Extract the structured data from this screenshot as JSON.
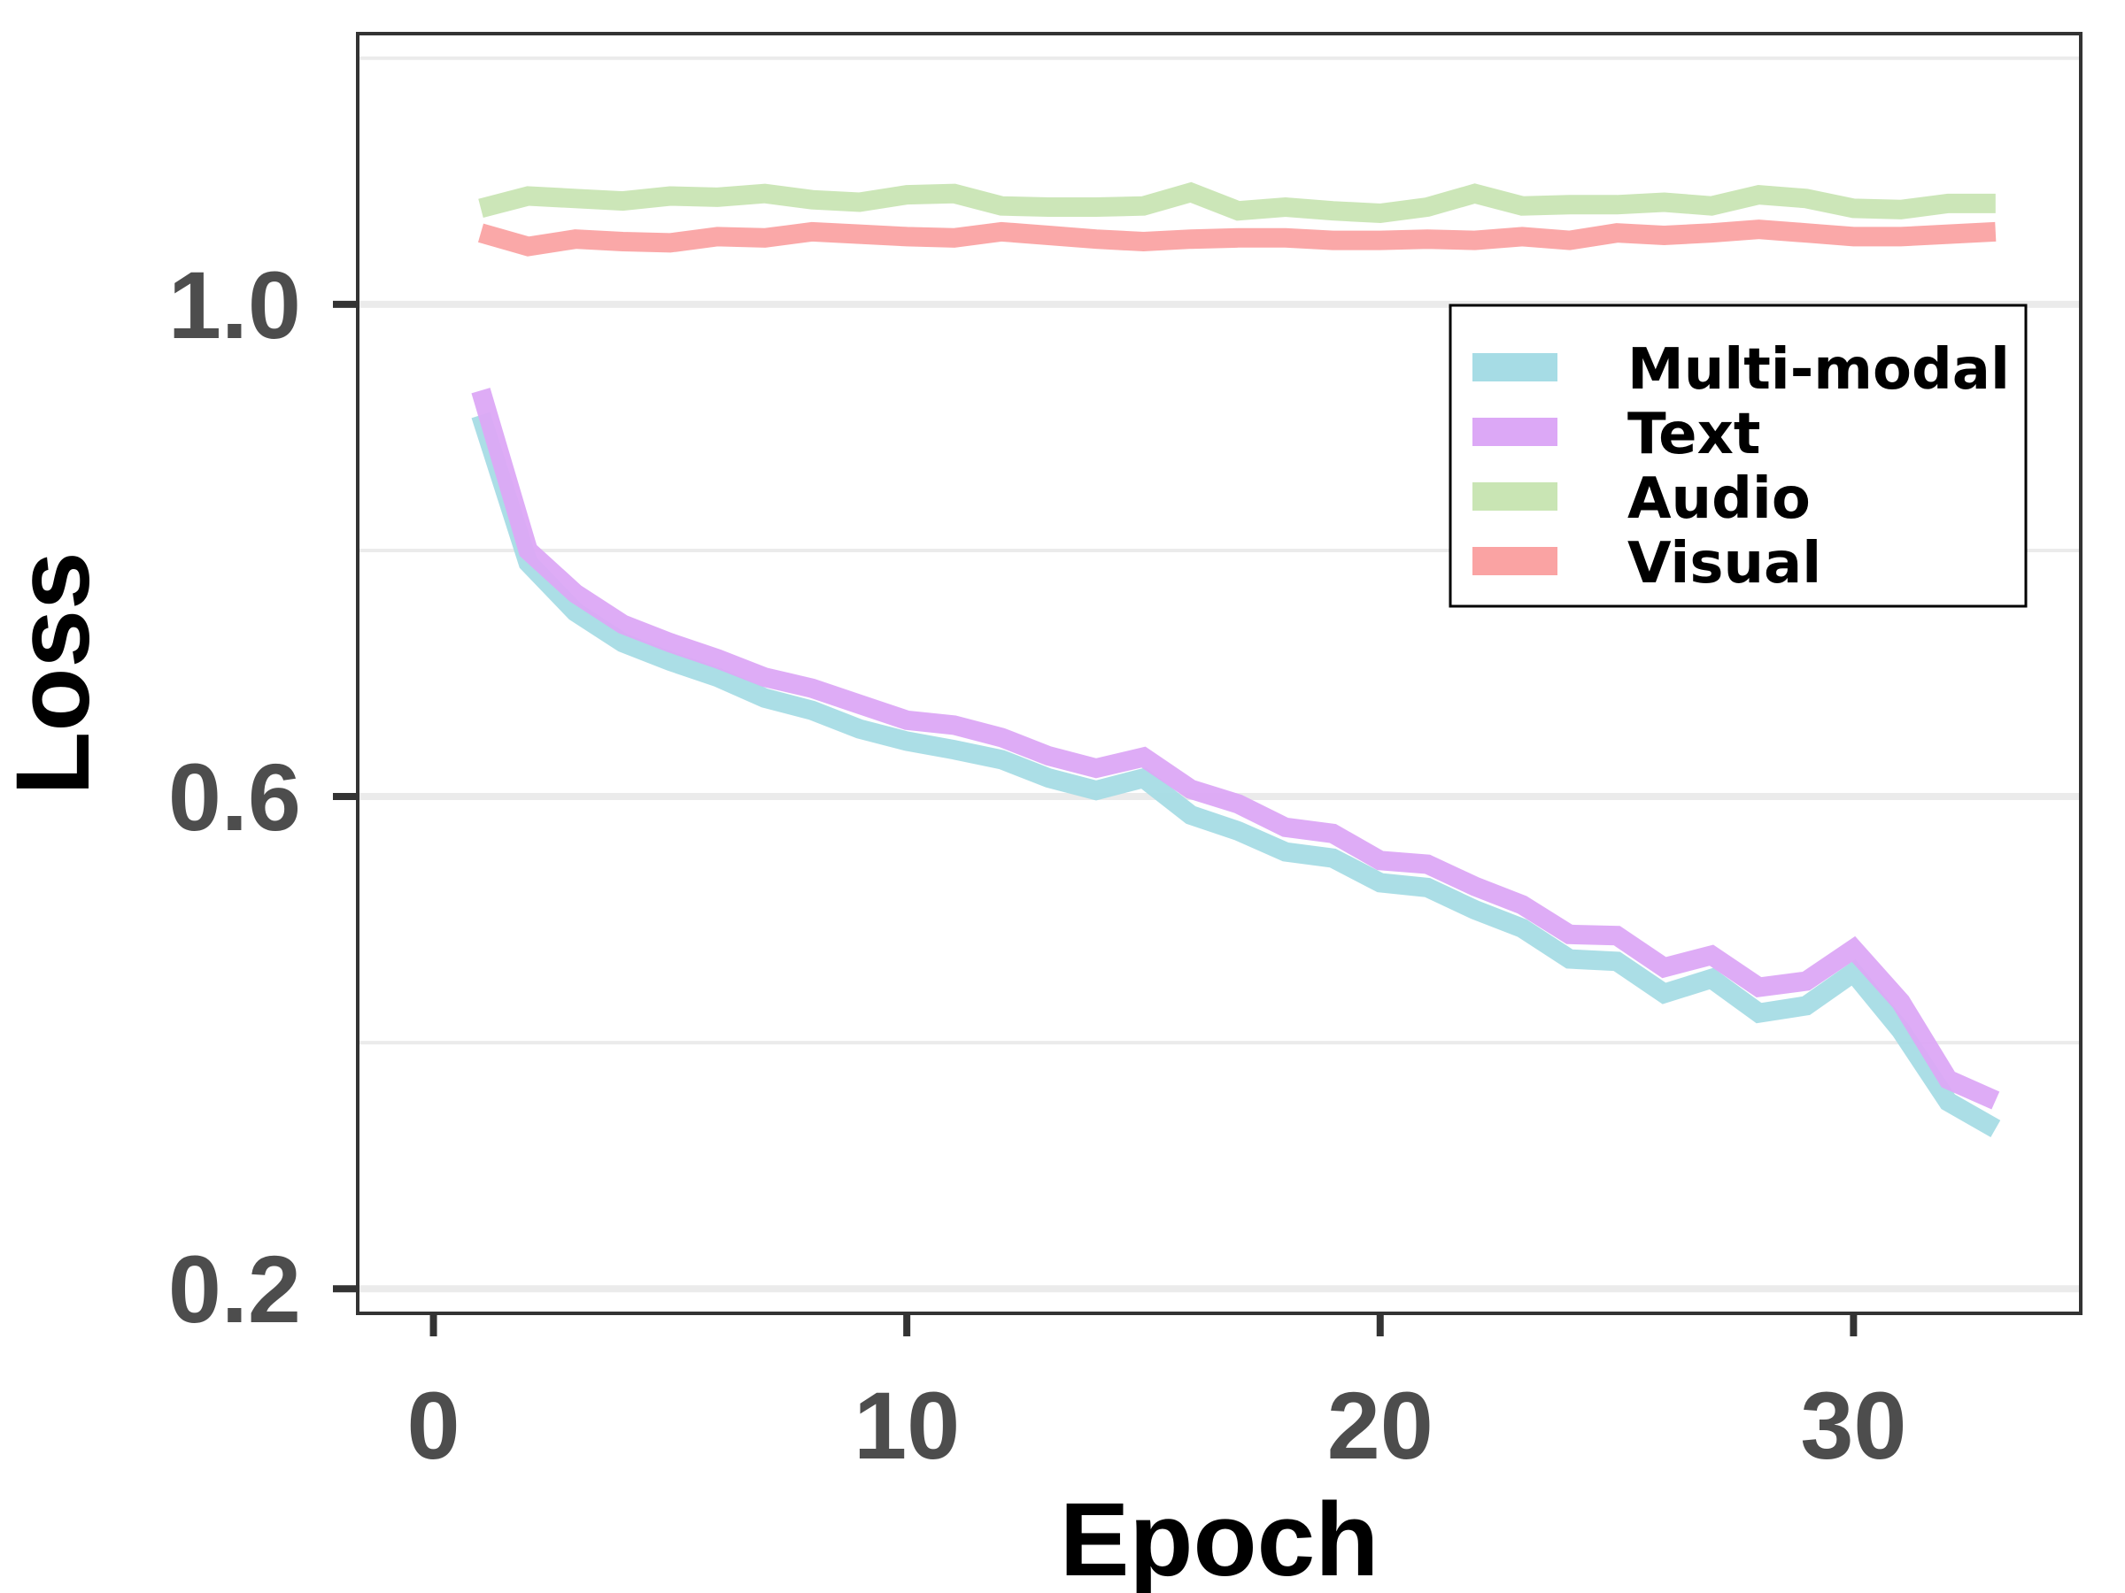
{
  "chart_data": {
    "type": "line",
    "title": "",
    "xlabel": "Epoch",
    "ylabel": "Loss",
    "xlim": [
      -1.6,
      34.8
    ],
    "ylim": [
      0.18,
      1.22
    ],
    "xticks": [
      0,
      10,
      20,
      30
    ],
    "xtick_labels": [
      "0",
      "10",
      "20",
      "30"
    ],
    "yticks": [
      0.2,
      0.6,
      1.0
    ],
    "ytick_labels": [
      "0.2",
      "0.6",
      "1.0"
    ],
    "minor_gridlines_y": [
      0.4,
      0.8,
      1.2
    ],
    "grid": "horizontal",
    "legend_position": "upper-right",
    "x": [
      1,
      2,
      3,
      4,
      5,
      6,
      7,
      8,
      9,
      10,
      11,
      12,
      13,
      14,
      15,
      16,
      17,
      18,
      19,
      20,
      21,
      22,
      23,
      24,
      25,
      26,
      27,
      28,
      29,
      30,
      31,
      32,
      33
    ],
    "series": [
      {
        "name": "Multi-modal",
        "color": "#a6dce5",
        "values": [
          0.91,
          0.79,
          0.75,
          0.725,
          0.71,
          0.697,
          0.68,
          0.67,
          0.655,
          0.645,
          0.638,
          0.63,
          0.615,
          0.605,
          0.615,
          0.585,
          0.572,
          0.555,
          0.55,
          0.53,
          0.526,
          0.508,
          0.493,
          0.468,
          0.466,
          0.44,
          0.452,
          0.424,
          0.43,
          0.457,
          0.41,
          0.352,
          0.33
        ]
      },
      {
        "name": "Text",
        "color": "#dca8f6",
        "values": [
          0.93,
          0.8,
          0.765,
          0.74,
          0.725,
          0.712,
          0.697,
          0.688,
          0.675,
          0.662,
          0.658,
          0.648,
          0.633,
          0.623,
          0.632,
          0.606,
          0.594,
          0.575,
          0.57,
          0.548,
          0.545,
          0.527,
          0.512,
          0.488,
          0.487,
          0.461,
          0.471,
          0.445,
          0.45,
          0.476,
          0.433,
          0.37,
          0.353
        ]
      },
      {
        "name": "Audio",
        "color": "#c9e5b4",
        "values": [
          1.078,
          1.088,
          1.086,
          1.084,
          1.088,
          1.087,
          1.09,
          1.085,
          1.083,
          1.089,
          1.09,
          1.08,
          1.079,
          1.079,
          1.08,
          1.091,
          1.076,
          1.079,
          1.076,
          1.074,
          1.079,
          1.09,
          1.08,
          1.081,
          1.081,
          1.083,
          1.08,
          1.089,
          1.086,
          1.078,
          1.077,
          1.082,
          1.082
        ]
      },
      {
        "name": "Visual",
        "color": "#faa3a3",
        "values": [
          1.058,
          1.047,
          1.053,
          1.051,
          1.05,
          1.055,
          1.054,
          1.059,
          1.057,
          1.055,
          1.054,
          1.059,
          1.056,
          1.053,
          1.051,
          1.053,
          1.054,
          1.054,
          1.052,
          1.052,
          1.053,
          1.052,
          1.055,
          1.052,
          1.058,
          1.056,
          1.058,
          1.061,
          1.058,
          1.055,
          1.055,
          1.057,
          1.059
        ]
      }
    ]
  }
}
